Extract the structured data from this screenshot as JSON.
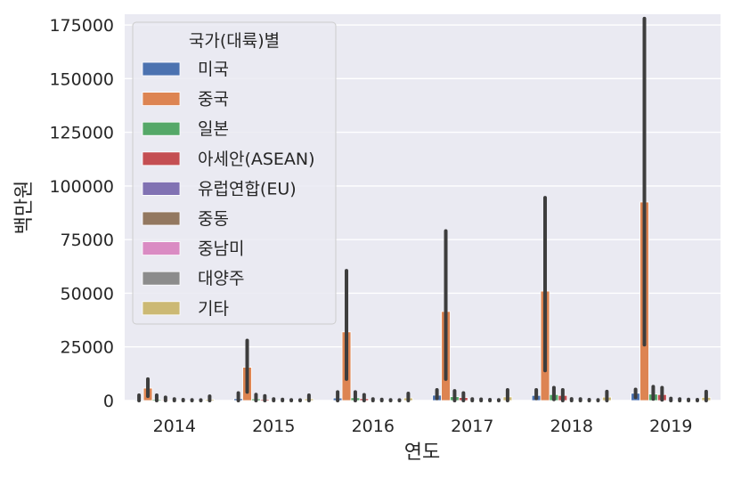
{
  "chart_data": {
    "type": "bar",
    "title": "",
    "xlabel": "연도",
    "ylabel": "백만원",
    "ylim": [
      0,
      180000
    ],
    "yticks": [
      0,
      25000,
      50000,
      75000,
      100000,
      125000,
      150000,
      175000
    ],
    "ytick_labels": [
      "0",
      "25000",
      "50000",
      "75000",
      "100000",
      "125000",
      "150000",
      "175000"
    ],
    "categories": [
      "2014",
      "2015",
      "2016",
      "2017",
      "2018",
      "2019"
    ],
    "legend_title": "국가(대륙)별",
    "legend_position": "top-left",
    "grid": true,
    "series": [
      {
        "name": "미국",
        "color": "#4c72b0",
        "values": [
          400,
          900,
          1200,
          2500,
          2400,
          3400
        ],
        "ci": [
          [
            0,
            2500
          ],
          [
            0,
            3500
          ],
          [
            0,
            4000
          ],
          [
            1000,
            5000
          ],
          [
            1000,
            5000
          ],
          [
            1500,
            5200
          ]
        ]
      },
      {
        "name": "중국",
        "color": "#dd8452",
        "values": [
          5800,
          15500,
          32000,
          41500,
          51000,
          92500
        ],
        "ci": [
          [
            2000,
            10000
          ],
          [
            4000,
            28000
          ],
          [
            10000,
            60500
          ],
          [
            10000,
            79000
          ],
          [
            14000,
            94500
          ],
          [
            26000,
            178000
          ]
        ]
      },
      {
        "name": "일본",
        "color": "#55a868",
        "values": [
          600,
          800,
          1300,
          1800,
          2800,
          3000
        ],
        "ci": [
          [
            0,
            2500
          ],
          [
            0,
            2800
          ],
          [
            0,
            4000
          ],
          [
            0,
            4500
          ],
          [
            500,
            6000
          ],
          [
            700,
            6500
          ]
        ]
      },
      {
        "name": "아세안(ASEAN)",
        "color": "#c44e52",
        "values": [
          400,
          600,
          900,
          1400,
          2400,
          2800
        ],
        "ci": [
          [
            0,
            1500
          ],
          [
            0,
            2200
          ],
          [
            0,
            2700
          ],
          [
            0,
            3500
          ],
          [
            0,
            5000
          ],
          [
            300,
            6000
          ]
        ]
      },
      {
        "name": "유럽연합(EU)",
        "color": "#8172b3",
        "values": [
          300,
          300,
          300,
          300,
          300,
          400
        ],
        "ci": [
          [
            0,
            700
          ],
          [
            0,
            700
          ],
          [
            0,
            700
          ],
          [
            0,
            700
          ],
          [
            0,
            800
          ],
          [
            0,
            1000
          ]
        ]
      },
      {
        "name": "중동",
        "color": "#937860",
        "values": [
          150,
          200,
          200,
          250,
          300,
          300
        ],
        "ci": [
          [
            0,
            400
          ],
          [
            0,
            500
          ],
          [
            0,
            500
          ],
          [
            0,
            600
          ],
          [
            0,
            700
          ],
          [
            0,
            700
          ]
        ]
      },
      {
        "name": "중남미",
        "color": "#da8bc3",
        "values": [
          100,
          150,
          150,
          200,
          200,
          250
        ],
        "ci": [
          [
            0,
            300
          ],
          [
            0,
            300
          ],
          [
            0,
            300
          ],
          [
            0,
            400
          ],
          [
            0,
            400
          ],
          [
            0,
            500
          ]
        ]
      },
      {
        "name": "대양주",
        "color": "#8c8c8c",
        "values": [
          100,
          100,
          100,
          150,
          150,
          200
        ],
        "ci": [
          [
            0,
            250
          ],
          [
            0,
            250
          ],
          [
            0,
            250
          ],
          [
            0,
            300
          ],
          [
            0,
            300
          ],
          [
            0,
            400
          ]
        ]
      },
      {
        "name": "기타",
        "color": "#ccb974",
        "values": [
          600,
          800,
          1200,
          1700,
          1600,
          1500
        ],
        "ci": [
          [
            0,
            2000
          ],
          [
            0,
            2500
          ],
          [
            0,
            3300
          ],
          [
            0,
            5000
          ],
          [
            0,
            4200
          ],
          [
            0,
            4200
          ]
        ]
      }
    ]
  }
}
